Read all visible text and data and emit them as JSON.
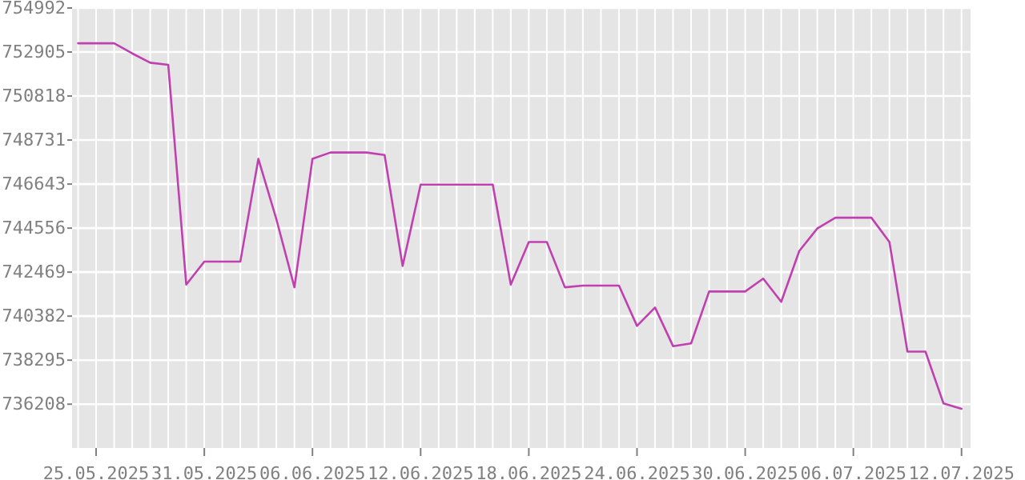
{
  "chart_data": {
    "type": "line",
    "x": [
      "2025-05-24",
      "2025-05-25",
      "2025-05-26",
      "2025-05-27",
      "2025-05-28",
      "2025-05-29",
      "2025-05-30",
      "2025-05-31",
      "2025-06-01",
      "2025-06-02",
      "2025-06-03",
      "2025-06-04",
      "2025-06-05",
      "2025-06-06",
      "2025-06-07",
      "2025-06-08",
      "2025-06-09",
      "2025-06-10",
      "2025-06-11",
      "2025-06-12",
      "2025-06-13",
      "2025-06-14",
      "2025-06-15",
      "2025-06-16",
      "2025-06-17",
      "2025-06-18",
      "2025-06-19",
      "2025-06-20",
      "2025-06-21",
      "2025-06-22",
      "2025-06-23",
      "2025-06-24",
      "2025-06-25",
      "2025-06-26",
      "2025-06-27",
      "2025-06-28",
      "2025-06-29",
      "2025-06-30",
      "2025-07-01",
      "2025-07-02",
      "2025-07-03",
      "2025-07-04",
      "2025-07-05",
      "2025-07-06",
      "2025-07-07",
      "2025-07-08",
      "2025-07-09",
      "2025-07-10",
      "2025-07-11",
      "2025-07-12"
    ],
    "series": [
      {
        "color": "#c040b0",
        "values": [
          753320,
          753320,
          753320,
          752840,
          752400,
          752300,
          741880,
          742970,
          742970,
          742970,
          747840,
          744970,
          741750,
          747840,
          748140,
          748140,
          748140,
          748020,
          742760,
          746620,
          746620,
          746620,
          746620,
          746620,
          741880,
          743900,
          743900,
          741750,
          741830,
          741830,
          741830,
          739920,
          740790,
          738960,
          739090,
          741550,
          741550,
          741550,
          742160,
          741060,
          743470,
          744540,
          745050,
          745050,
          745050,
          743900,
          738700,
          738700,
          736240,
          735990
        ]
      }
    ],
    "xlim": [
      "2025-05-23T16:00",
      "2025-07-12T12:00"
    ],
    "xticks": [
      {
        "value": "2025-05-24",
        "label": null
      },
      {
        "value": "2025-05-25",
        "label": "25.05.2025"
      },
      {
        "value": "2025-05-26",
        "label": null
      },
      {
        "value": "2025-05-27",
        "label": null
      },
      {
        "value": "2025-05-28",
        "label": null
      },
      {
        "value": "2025-05-29",
        "label": null
      },
      {
        "value": "2025-05-30",
        "label": null
      },
      {
        "value": "2025-05-31",
        "label": "31.05.2025"
      },
      {
        "value": "2025-06-01",
        "label": null
      },
      {
        "value": "2025-06-02",
        "label": null
      },
      {
        "value": "2025-06-03",
        "label": null
      },
      {
        "value": "2025-06-04",
        "label": null
      },
      {
        "value": "2025-06-05",
        "label": null
      },
      {
        "value": "2025-06-06",
        "label": "06.06.2025"
      },
      {
        "value": "2025-06-07",
        "label": null
      },
      {
        "value": "2025-06-08",
        "label": null
      },
      {
        "value": "2025-06-09",
        "label": null
      },
      {
        "value": "2025-06-10",
        "label": null
      },
      {
        "value": "2025-06-11",
        "label": null
      },
      {
        "value": "2025-06-12",
        "label": "12.06.2025"
      },
      {
        "value": "2025-06-13",
        "label": null
      },
      {
        "value": "2025-06-14",
        "label": null
      },
      {
        "value": "2025-06-15",
        "label": null
      },
      {
        "value": "2025-06-16",
        "label": null
      },
      {
        "value": "2025-06-17",
        "label": null
      },
      {
        "value": "2025-06-18",
        "label": "18.06.2025"
      },
      {
        "value": "2025-06-19",
        "label": null
      },
      {
        "value": "2025-06-20",
        "label": null
      },
      {
        "value": "2025-06-21",
        "label": null
      },
      {
        "value": "2025-06-22",
        "label": null
      },
      {
        "value": "2025-06-23",
        "label": null
      },
      {
        "value": "2025-06-24",
        "label": "24.06.2025"
      },
      {
        "value": "2025-06-25",
        "label": null
      },
      {
        "value": "2025-06-26",
        "label": null
      },
      {
        "value": "2025-06-27",
        "label": null
      },
      {
        "value": "2025-06-28",
        "label": null
      },
      {
        "value": "2025-06-29",
        "label": null
      },
      {
        "value": "2025-06-30",
        "label": "30.06.2025"
      },
      {
        "value": "2025-07-01",
        "label": null
      },
      {
        "value": "2025-07-02",
        "label": null
      },
      {
        "value": "2025-07-03",
        "label": null
      },
      {
        "value": "2025-07-04",
        "label": null
      },
      {
        "value": "2025-07-05",
        "label": null
      },
      {
        "value": "2025-07-06",
        "label": "06.07.2025"
      },
      {
        "value": "2025-07-07",
        "label": null
      },
      {
        "value": "2025-07-08",
        "label": null
      },
      {
        "value": "2025-07-09",
        "label": null
      },
      {
        "value": "2025-07-10",
        "label": null
      },
      {
        "value": "2025-07-11",
        "label": null
      },
      {
        "value": "2025-07-12",
        "label": "12.07.2025"
      }
    ],
    "ylim": [
      734130,
      754992
    ],
    "yticks": [
      736208,
      738295,
      740382,
      742469,
      744556,
      746643,
      748731,
      750818,
      752905,
      754992
    ],
    "grid": true
  }
}
